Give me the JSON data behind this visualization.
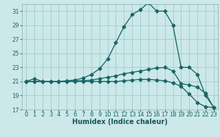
{
  "xlabel": "Humidex (Indice chaleur)",
  "bg_color": "#cce8e8",
  "grid_color": "#99cccc",
  "line_color": "#1a6666",
  "xlim": [
    -0.5,
    23.5
  ],
  "ylim": [
    17,
    32
  ],
  "yticks": [
    17,
    19,
    21,
    23,
    25,
    27,
    29,
    31
  ],
  "xticks": [
    0,
    1,
    2,
    3,
    4,
    5,
    6,
    7,
    8,
    9,
    10,
    11,
    12,
    13,
    14,
    15,
    16,
    17,
    18,
    19,
    20,
    21,
    22,
    23
  ],
  "line1_x": [
    0,
    1,
    2,
    3,
    4,
    5,
    6,
    7,
    8,
    9,
    10,
    11,
    12,
    13,
    14,
    15,
    16,
    17,
    18,
    19,
    20,
    21,
    22,
    23
  ],
  "line1_y": [
    21.0,
    21.4,
    21.0,
    21.0,
    21.0,
    21.1,
    21.2,
    21.5,
    22.0,
    22.8,
    24.2,
    26.5,
    28.8,
    30.5,
    31.2,
    32.2,
    31.0,
    31.0,
    29.0,
    23.0,
    23.0,
    22.0,
    19.0,
    17.3
  ],
  "line2_x": [
    0,
    1,
    2,
    3,
    4,
    5,
    6,
    7,
    8,
    9,
    10,
    11,
    12,
    13,
    14,
    15,
    16,
    17,
    18,
    19,
    20,
    21,
    22,
    23
  ],
  "line2_y": [
    21.0,
    21.0,
    21.0,
    21.0,
    21.0,
    21.0,
    21.1,
    21.1,
    21.2,
    21.4,
    21.6,
    21.8,
    22.1,
    22.3,
    22.5,
    22.7,
    22.9,
    23.0,
    22.5,
    20.7,
    20.5,
    20.2,
    19.3,
    17.3
  ],
  "line3_x": [
    0,
    1,
    2,
    3,
    4,
    5,
    6,
    7,
    8,
    9,
    10,
    11,
    12,
    13,
    14,
    15,
    16,
    17,
    18,
    19,
    20,
    21,
    22,
    23
  ],
  "line3_y": [
    21.0,
    21.0,
    21.0,
    21.0,
    21.0,
    21.0,
    21.0,
    21.0,
    21.0,
    21.0,
    21.0,
    21.0,
    21.1,
    21.2,
    21.3,
    21.3,
    21.2,
    21.1,
    20.8,
    20.3,
    19.2,
    18.0,
    17.4,
    17.3
  ],
  "marker": "D",
  "markersize": 2.5,
  "linewidth": 1.0,
  "axis_fontsize": 7,
  "tick_fontsize": 6
}
